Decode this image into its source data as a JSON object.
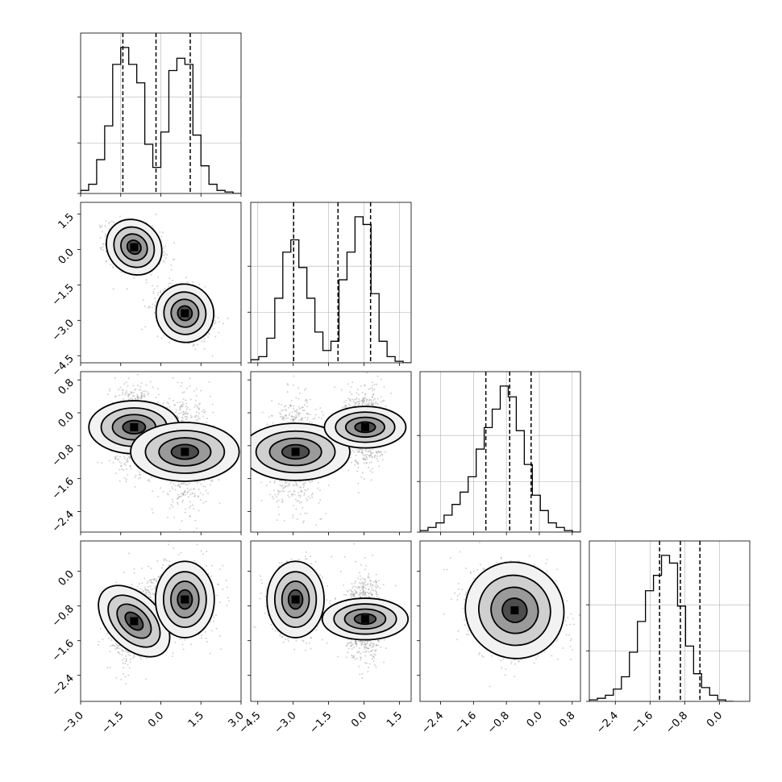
{
  "chart_data": {
    "type": "corner",
    "colors": {
      "line": "#000000",
      "grid": "#b0b0b0",
      "scatter": "#7f7f7f",
      "density": "#000000"
    },
    "grid": true,
    "axis_ticks": [
      [
        "-3.0",
        "-1.5",
        "0.0",
        "1.5",
        "3.0"
      ],
      [
        "-4.5",
        "-3.0",
        "-1.5",
        "0.0",
        "1.5"
      ],
      [
        "-2.4",
        "-1.6",
        "-0.8",
        "0.0",
        "0.8"
      ],
      [
        "-2.4",
        "-1.6",
        "-0.8",
        "0.0"
      ]
    ],
    "ranges": [
      [
        -3.0,
        3.0
      ],
      [
        -4.8,
        2.0
      ],
      [
        -2.9,
        1.0
      ],
      [
        -3.0,
        0.7
      ]
    ],
    "quantiles": [
      [
        -1.42,
        -0.18,
        1.1
      ],
      [
        -2.98,
        -1.1,
        0.28
      ],
      [
        -1.3,
        -0.72,
        -0.2
      ],
      [
        -1.38,
        -0.9,
        -0.45
      ]
    ],
    "marginals": [
      {
        "bin_start": -3.0,
        "bin_width": 0.3,
        "counts": [
          2,
          6,
          22,
          44,
          84,
          95,
          84,
          72,
          32,
          17,
          40,
          80,
          88,
          84,
          38,
          18,
          6,
          2,
          1,
          0
        ]
      },
      {
        "bin_start": -4.8,
        "bin_width": 0.34,
        "counts": [
          2,
          4,
          16,
          42,
          72,
          80,
          62,
          42,
          20,
          8,
          14,
          54,
          72,
          95,
          90,
          45,
          14,
          4,
          1,
          0
        ]
      },
      {
        "bin_start": -2.9,
        "bin_width": 0.195,
        "counts": [
          1,
          3,
          6,
          11,
          18,
          26,
          36,
          54,
          68,
          80,
          95,
          88,
          66,
          44,
          24,
          14,
          6,
          3,
          1,
          0
        ]
      },
      {
        "bin_start": -3.0,
        "bin_width": 0.185,
        "counts": [
          1,
          2,
          4,
          8,
          16,
          32,
          52,
          72,
          82,
          95,
          90,
          62,
          36,
          18,
          9,
          4,
          1,
          0
        ]
      }
    ],
    "pairs": [
      {
        "x": 0,
        "y": 1,
        "modes": [
          {
            "mx": -1.0,
            "my": 0.1,
            "sx": 0.5,
            "sy": 0.5,
            "rho": -0.3
          },
          {
            "mx": 0.9,
            "my": -2.7,
            "sx": 0.5,
            "sy": 0.55,
            "rho": -0.25
          }
        ]
      },
      {
        "x": 0,
        "y": 2,
        "modes": [
          {
            "mx": -1.0,
            "my": -0.35,
            "sx": 0.45,
            "sy": 0.5,
            "rho": 0.0
          },
          {
            "mx": 0.9,
            "my": -0.95,
            "sx": 0.5,
            "sy": 0.6,
            "rho": 0.0
          }
        ]
      },
      {
        "x": 1,
        "y": 2,
        "modes": [
          {
            "mx": -2.9,
            "my": -0.95,
            "sx": 0.55,
            "sy": 0.6,
            "rho": 0.0
          },
          {
            "mx": 0.05,
            "my": -0.35,
            "sx": 0.4,
            "sy": 0.45,
            "rho": 0.0
          }
        ]
      },
      {
        "x": 0,
        "y": 3,
        "modes": [
          {
            "mx": -1.0,
            "my": -1.15,
            "sx": 0.45,
            "sy": 0.45,
            "rho": 0.3
          },
          {
            "mx": 0.9,
            "my": -0.65,
            "sx": 0.5,
            "sy": 0.4,
            "rho": 0.0
          }
        ]
      },
      {
        "x": 1,
        "y": 3,
        "modes": [
          {
            "mx": -2.9,
            "my": -0.65,
            "sx": 0.55,
            "sy": 0.4,
            "rho": 0.0
          },
          {
            "mx": 0.05,
            "my": -1.1,
            "sx": 0.4,
            "sy": 0.45,
            "rho": 0.0
          }
        ]
      },
      {
        "x": 2,
        "y": 3,
        "modes": [
          {
            "mx": -0.6,
            "my": -0.9,
            "sx": 0.55,
            "sy": 0.5,
            "rho": -0.15
          }
        ]
      }
    ]
  }
}
